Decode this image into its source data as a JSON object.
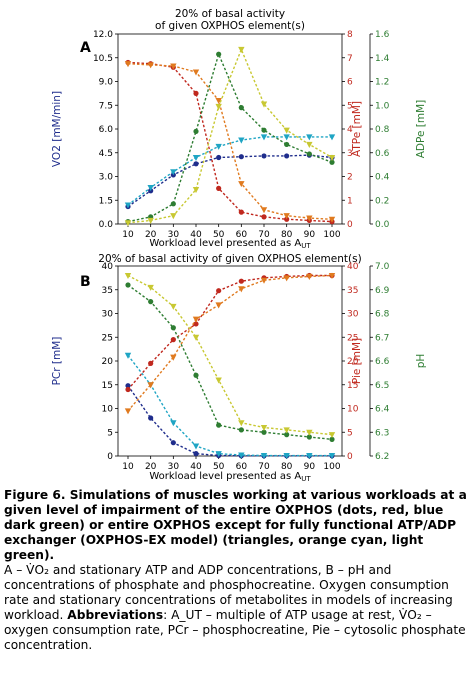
{
  "chart_data": [
    {
      "panel_label": "A",
      "type": "line",
      "title_lines": [
        "20% of basal activity",
        "of given OXPHOS element(s)"
      ],
      "xlabel": "Workload level presented as A_UT",
      "x": [
        10,
        20,
        30,
        40,
        50,
        60,
        70,
        80,
        90,
        100
      ],
      "axes": {
        "left": {
          "label": "VO2 [mM/min]",
          "lim": [
            0,
            12
          ],
          "ticks": [
            "0.0",
            "1.5",
            "3.0",
            "4.5",
            "6.0",
            "7.5",
            "9.0",
            "10.5",
            "12.0"
          ],
          "tick_values": [
            0,
            1.5,
            3,
            4.5,
            6,
            7.5,
            9,
            10.5,
            12
          ],
          "color": "#1f2d8c"
        },
        "right1": {
          "label": "ATPe [mM]",
          "lim": [
            0,
            8
          ],
          "ticks": [
            "0",
            "1",
            "2",
            "3",
            "4",
            "5",
            "6",
            "7",
            "8"
          ],
          "tick_values": [
            0,
            1,
            2,
            3,
            4,
            5,
            6,
            7,
            8
          ],
          "color": "#c0281e"
        },
        "right2": {
          "label": "ADPe [mM]",
          "lim": [
            0,
            1.6
          ],
          "ticks": [
            "0.0",
            "0.2",
            "0.4",
            "0.6",
            "0.8",
            "1.0",
            "1.2",
            "1.4",
            "1.6"
          ],
          "tick_values": [
            0,
            0.2,
            0.4,
            0.6,
            0.8,
            1.0,
            1.2,
            1.4,
            1.6
          ],
          "color": "#2e7d32"
        }
      },
      "series": [
        {
          "axis": "left",
          "marker": "dot",
          "color": "#1f2d8c",
          "values": [
            1.1,
            2.1,
            3.1,
            3.8,
            4.2,
            4.25,
            4.3,
            4.3,
            4.35,
            4.2
          ]
        },
        {
          "axis": "left",
          "marker": "triangle",
          "color": "#1fa5c4",
          "values": [
            1.2,
            2.3,
            3.3,
            4.2,
            4.9,
            5.3,
            5.5,
            5.5,
            5.5,
            5.5
          ]
        },
        {
          "axis": "right1",
          "marker": "dot",
          "color": "#c0281e",
          "values": [
            6.8,
            6.75,
            6.6,
            5.5,
            1.5,
            0.5,
            0.3,
            0.2,
            0.15,
            0.1
          ]
        },
        {
          "axis": "right1",
          "marker": "triangle",
          "color": "#e07a1f",
          "values": [
            6.75,
            6.7,
            6.65,
            6.4,
            5.2,
            1.7,
            0.6,
            0.35,
            0.25,
            0.2
          ]
        },
        {
          "axis": "right2",
          "marker": "dot",
          "color": "#2e7d32",
          "values": [
            0.02,
            0.06,
            0.17,
            0.78,
            1.43,
            0.98,
            0.79,
            0.67,
            0.59,
            0.52
          ]
        },
        {
          "axis": "right2",
          "marker": "triangle",
          "color": "#c8c832",
          "values": [
            0.01,
            0.03,
            0.07,
            0.29,
            0.99,
            1.47,
            1.01,
            0.79,
            0.67,
            0.56
          ]
        }
      ]
    },
    {
      "panel_label": "B",
      "type": "line",
      "title_lines": [
        "20% of basal activity of given OXPHOS element(s)"
      ],
      "xlabel": "Workload level presented as A_UT",
      "x": [
        10,
        20,
        30,
        40,
        50,
        60,
        70,
        80,
        90,
        100
      ],
      "axes": {
        "left": {
          "label": "PCr [mM]",
          "lim": [
            0,
            40
          ],
          "ticks": [
            "0",
            "5",
            "10",
            "15",
            "20",
            "25",
            "30",
            "35",
            "40"
          ],
          "tick_values": [
            0,
            5,
            10,
            15,
            20,
            25,
            30,
            35,
            40
          ],
          "color": "#1f2d8c"
        },
        "right1": {
          "label": "Pie [mM]",
          "lim": [
            0,
            40
          ],
          "ticks": [
            "0",
            "5",
            "10",
            "15",
            "20",
            "25",
            "30",
            "35",
            "40"
          ],
          "tick_values": [
            0,
            5,
            10,
            15,
            20,
            25,
            30,
            35,
            40
          ],
          "color": "#c0281e"
        },
        "right2": {
          "label": "pH",
          "lim": [
            6.2,
            7.0
          ],
          "ticks": [
            "6.2",
            "6.3",
            "6.4",
            "6.5",
            "6.6",
            "6.7",
            "6.8",
            "6.9",
            "7.0"
          ],
          "tick_values": [
            6.2,
            6.3,
            6.4,
            6.5,
            6.6,
            6.7,
            6.8,
            6.9,
            7.0
          ],
          "color": "#2e7d32"
        }
      },
      "series": [
        {
          "axis": "left",
          "marker": "dot",
          "color": "#1f2d8c",
          "values": [
            14.8,
            8.0,
            2.8,
            0.5,
            0.1,
            0.05,
            0.05,
            0.05,
            0.05,
            0.05
          ]
        },
        {
          "axis": "left",
          "marker": "triangle",
          "color": "#1fa5c4",
          "values": [
            21.2,
            15.0,
            7.0,
            2.1,
            0.5,
            0.2,
            0.1,
            0.1,
            0.1,
            0.1
          ]
        },
        {
          "axis": "right1",
          "marker": "dot",
          "color": "#c0281e",
          "values": [
            14.0,
            19.5,
            24.5,
            27.8,
            34.8,
            36.8,
            37.5,
            37.8,
            38.0,
            38.0
          ]
        },
        {
          "axis": "right1",
          "marker": "triangle",
          "color": "#e07a1f",
          "values": [
            9.5,
            15.0,
            20.8,
            28.8,
            31.8,
            35.2,
            37.0,
            37.5,
            37.8,
            38.0
          ]
        },
        {
          "axis": "right2",
          "marker": "dot",
          "color": "#2e7d32",
          "values": [
            6.92,
            6.85,
            6.74,
            6.54,
            6.33,
            6.31,
            6.3,
            6.29,
            6.28,
            6.27
          ]
        },
        {
          "axis": "right2",
          "marker": "triangle",
          "color": "#c8c832",
          "values": [
            6.96,
            6.91,
            6.83,
            6.7,
            6.52,
            6.34,
            6.32,
            6.31,
            6.3,
            6.29
          ]
        }
      ]
    }
  ],
  "caption": {
    "bold": "Figure 6. Simulations of muscles working at various workloads at a given level of impairment of the entire OXPHOS (dots, red, blue dark green) or entire OXPHOS except for fully functional ATP/ADP exchanger (OXPHOS-EX model) (triangles, orange cyan, light green).",
    "body_line1": "A – V̇O₂ and stationary ATP and ADP concentrations, B – pH and concentrations of phosphate and phosphocreatine. Oxygen consumption rate and stationary concentrations of metabolites in models of increasing workload.",
    "abbr_label": "Abbreviations",
    "abbr_text": ": A_UT – multiple of ATP usage at rest, V̇O₂ – oxygen consumption rate, PCr – phosphocreatine, Pie – cytosolic phosphate concentration."
  }
}
